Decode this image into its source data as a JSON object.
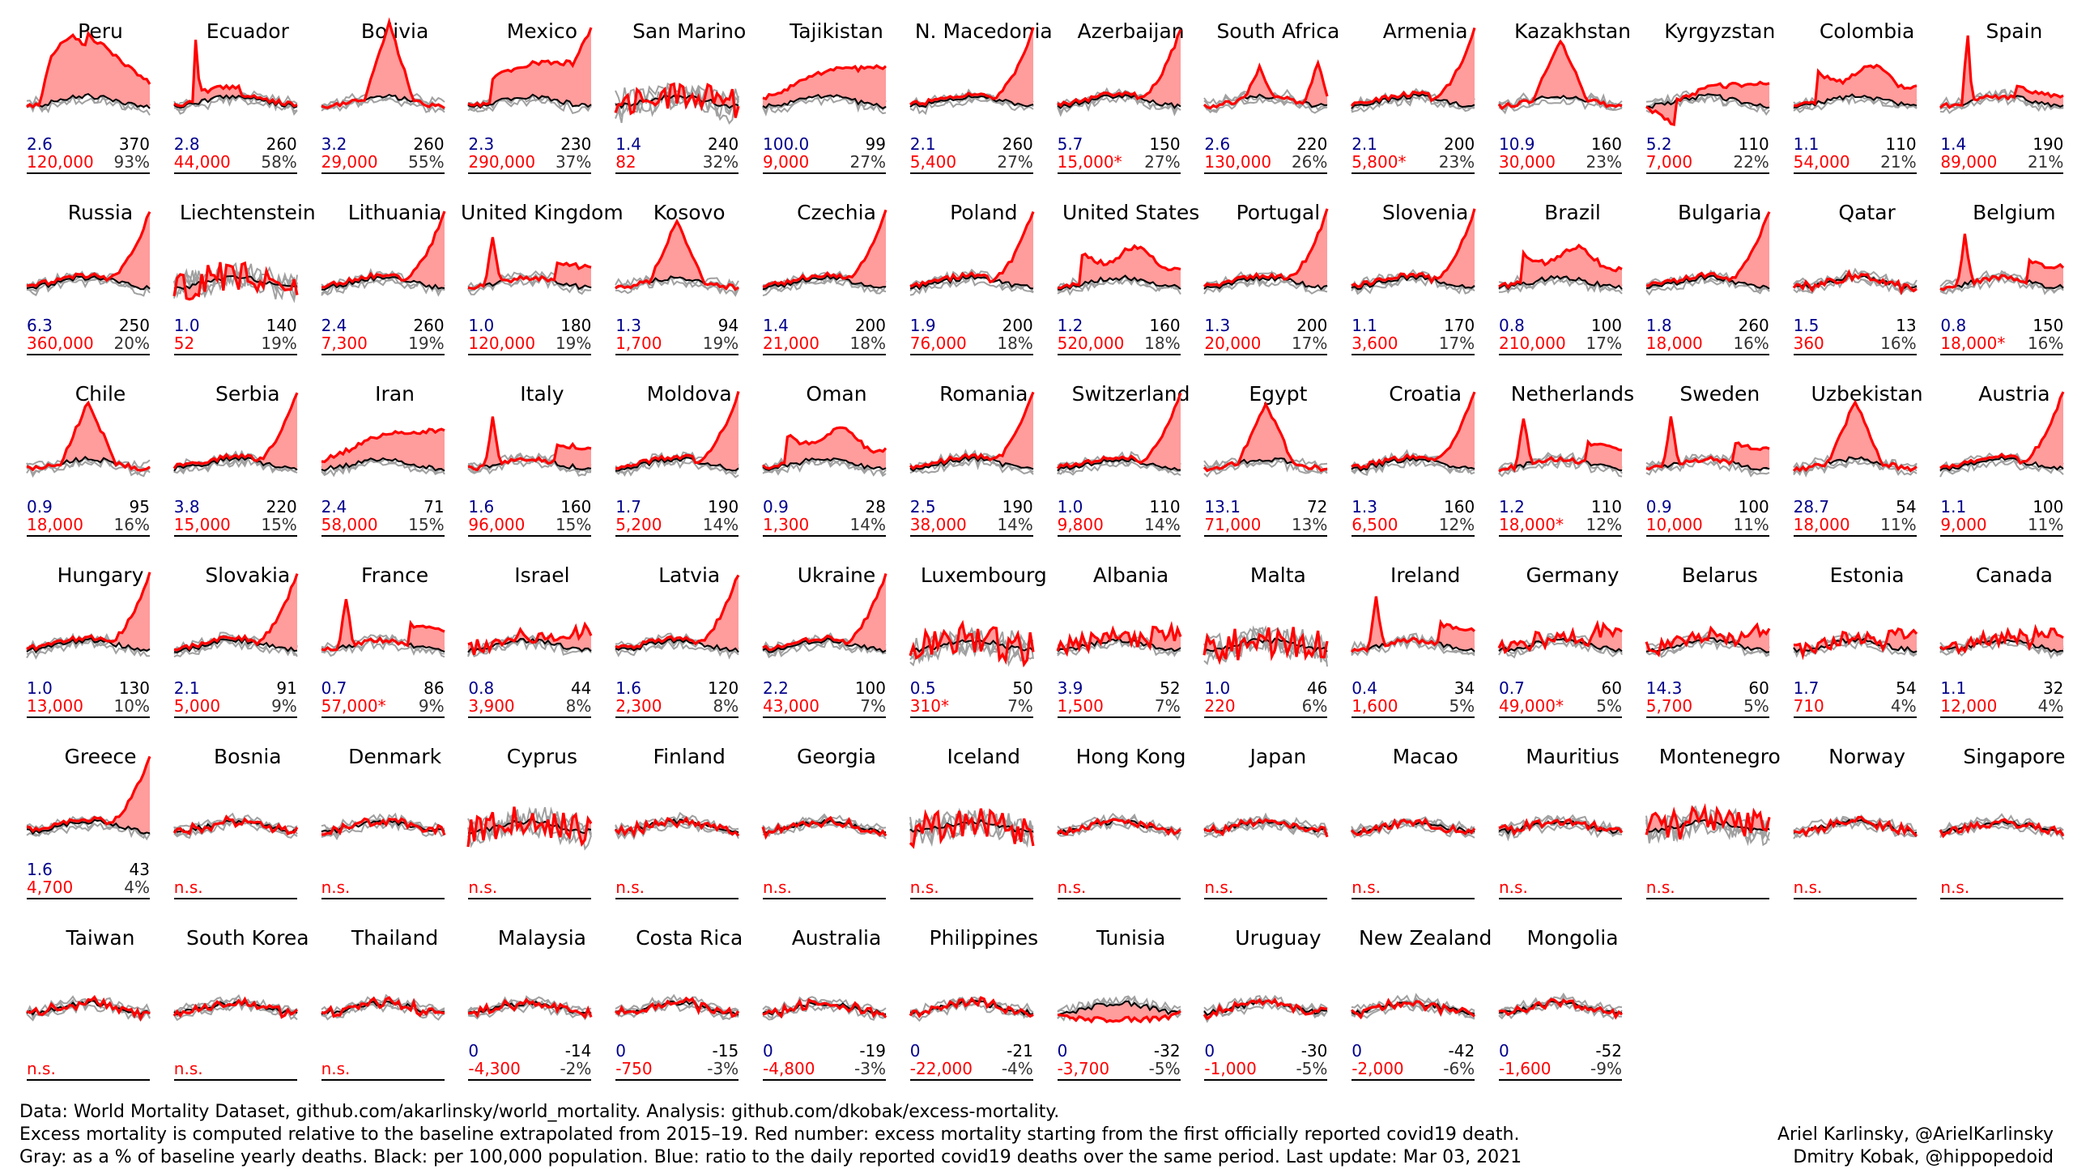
{
  "colors": {
    "excess": "#ff0000",
    "fill": "#ff9c9c",
    "baseline": "#000000",
    "past": "#a0a0a0",
    "early": "#b400c8"
  },
  "chart_data": {
    "type": "line",
    "panels": [
      {
        "name": "Peru",
        "blue": "2.6",
        "black": "370",
        "red": "120,000",
        "gray": "93%",
        "shape": "peru"
      },
      {
        "name": "Ecuador",
        "blue": "2.8",
        "black": "260",
        "red": "44,000",
        "gray": "58%",
        "shape": "ecuador"
      },
      {
        "name": "Bolivia",
        "blue": "3.2",
        "black": "260",
        "red": "29,000",
        "gray": "55%",
        "shape": "bolivia"
      },
      {
        "name": "Mexico",
        "blue": "2.3",
        "black": "230",
        "red": "290,000",
        "gray": "37%",
        "shape": "mexico"
      },
      {
        "name": "San Marino",
        "blue": "1.4",
        "black": "240",
        "red": "82",
        "gray": "32%",
        "shape": "noisy"
      },
      {
        "name": "Tajikistan",
        "blue": "100.0",
        "black": "99",
        "red": "9,000",
        "gray": "27%",
        "shape": "tajik"
      },
      {
        "name": "N. Macedonia",
        "blue": "2.1",
        "black": "260",
        "red": "5,400",
        "gray": "27%",
        "shape": "late"
      },
      {
        "name": "Azerbaijan",
        "blue": "5.7",
        "black": "150",
        "red": "15,000*",
        "gray": "27%",
        "shape": "late"
      },
      {
        "name": "South Africa",
        "blue": "2.6",
        "black": "220",
        "red": "130,000",
        "gray": "26%",
        "shape": "twin"
      },
      {
        "name": "Armenia",
        "blue": "2.1",
        "black": "200",
        "red": "5,800*",
        "gray": "23%",
        "shape": "late"
      },
      {
        "name": "Kazakhstan",
        "blue": "10.9",
        "black": "160",
        "red": "30,000",
        "gray": "23%",
        "shape": "mid"
      },
      {
        "name": "Kyrgyzstan",
        "blue": "5.2",
        "black": "110",
        "red": "7,000",
        "gray": "22%",
        "shape": "kyrgyz"
      },
      {
        "name": "Colombia",
        "blue": "1.1",
        "black": "110",
        "red": "54,000",
        "gray": "21%",
        "shape": "plateau"
      },
      {
        "name": "Spain",
        "blue": "1.4",
        "black": "190",
        "red": "89,000",
        "gray": "21%",
        "shape": "spain"
      },
      {
        "name": "Russia",
        "blue": "6.3",
        "black": "250",
        "red": "360,000",
        "gray": "20%",
        "shape": "late"
      },
      {
        "name": "Liechtenstein",
        "blue": "1.0",
        "black": "140",
        "red": "52",
        "gray": "19%",
        "shape": "noisy"
      },
      {
        "name": "Lithuania",
        "blue": "2.4",
        "black": "260",
        "red": "7,300",
        "gray": "19%",
        "shape": "late"
      },
      {
        "name": "United Kingdom",
        "blue": "1.0",
        "black": "180",
        "red": "120,000",
        "gray": "19%",
        "shape": "spring"
      },
      {
        "name": "Kosovo",
        "blue": "1.3",
        "black": "94",
        "red": "1,700",
        "gray": "19%",
        "shape": "mid"
      },
      {
        "name": "Czechia",
        "blue": "1.4",
        "black": "200",
        "red": "21,000",
        "gray": "18%",
        "shape": "late"
      },
      {
        "name": "Poland",
        "blue": "1.9",
        "black": "200",
        "red": "76,000",
        "gray": "18%",
        "shape": "late"
      },
      {
        "name": "United States",
        "blue": "1.2",
        "black": "160",
        "red": "520,000",
        "gray": "18%",
        "shape": "plateau"
      },
      {
        "name": "Portugal",
        "blue": "1.3",
        "black": "200",
        "red": "20,000",
        "gray": "17%",
        "shape": "late"
      },
      {
        "name": "Slovenia",
        "blue": "1.1",
        "black": "170",
        "red": "3,600",
        "gray": "17%",
        "shape": "late"
      },
      {
        "name": "Brazil",
        "blue": "0.8",
        "black": "100",
        "red": "210,000",
        "gray": "17%",
        "shape": "plateau"
      },
      {
        "name": "Bulgaria",
        "blue": "1.8",
        "black": "260",
        "red": "18,000",
        "gray": "16%",
        "shape": "late"
      },
      {
        "name": "Qatar",
        "blue": "1.5",
        "black": "13",
        "red": "360",
        "gray": "16%",
        "shape": "flat"
      },
      {
        "name": "Belgium",
        "blue": "0.8",
        "black": "150",
        "red": "18,000*",
        "gray": "16%",
        "shape": "spring"
      },
      {
        "name": "Chile",
        "blue": "0.9",
        "black": "95",
        "red": "18,000",
        "gray": "16%",
        "shape": "mid"
      },
      {
        "name": "Serbia",
        "blue": "3.8",
        "black": "220",
        "red": "15,000",
        "gray": "15%",
        "shape": "late"
      },
      {
        "name": "Iran",
        "blue": "2.4",
        "black": "71",
        "red": "58,000",
        "gray": "15%",
        "shape": "tajik"
      },
      {
        "name": "Italy",
        "blue": "1.6",
        "black": "160",
        "red": "96,000",
        "gray": "15%",
        "shape": "spring"
      },
      {
        "name": "Moldova",
        "blue": "1.7",
        "black": "190",
        "red": "5,200",
        "gray": "14%",
        "shape": "late"
      },
      {
        "name": "Oman",
        "blue": "0.9",
        "black": "28",
        "red": "1,300",
        "gray": "14%",
        "shape": "plateau"
      },
      {
        "name": "Romania",
        "blue": "2.5",
        "black": "190",
        "red": "38,000",
        "gray": "14%",
        "shape": "late"
      },
      {
        "name": "Switzerland",
        "blue": "1.0",
        "black": "110",
        "red": "9,800",
        "gray": "14%",
        "shape": "late"
      },
      {
        "name": "Egypt",
        "blue": "13.1",
        "black": "72",
        "red": "71,000",
        "gray": "13%",
        "shape": "mid"
      },
      {
        "name": "Croatia",
        "blue": "1.3",
        "black": "160",
        "red": "6,500",
        "gray": "12%",
        "shape": "late"
      },
      {
        "name": "Netherlands",
        "blue": "1.2",
        "black": "110",
        "red": "18,000*",
        "gray": "12%",
        "shape": "spring"
      },
      {
        "name": "Sweden",
        "blue": "0.9",
        "black": "100",
        "red": "10,000",
        "gray": "11%",
        "shape": "spring"
      },
      {
        "name": "Uzbekistan",
        "blue": "28.7",
        "black": "54",
        "red": "18,000",
        "gray": "11%",
        "shape": "mid"
      },
      {
        "name": "Austria",
        "blue": "1.1",
        "black": "100",
        "red": "9,000",
        "gray": "11%",
        "shape": "late"
      },
      {
        "name": "Hungary",
        "blue": "1.0",
        "black": "130",
        "red": "13,000",
        "gray": "10%",
        "shape": "late"
      },
      {
        "name": "Slovakia",
        "blue": "2.1",
        "black": "91",
        "red": "5,000",
        "gray": "9%",
        "shape": "late"
      },
      {
        "name": "France",
        "blue": "0.7",
        "black": "86",
        "red": "57,000*",
        "gray": "9%",
        "shape": "spring"
      },
      {
        "name": "Israel",
        "blue": "0.8",
        "black": "44",
        "red": "3,900",
        "gray": "8%",
        "shape": "small"
      },
      {
        "name": "Latvia",
        "blue": "1.6",
        "black": "120",
        "red": "2,300",
        "gray": "8%",
        "shape": "late"
      },
      {
        "name": "Ukraine",
        "blue": "2.2",
        "black": "100",
        "red": "43,000",
        "gray": "7%",
        "shape": "late"
      },
      {
        "name": "Luxembourg",
        "blue": "0.5",
        "black": "50",
        "red": "310*",
        "gray": "7%",
        "shape": "noisy"
      },
      {
        "name": "Albania",
        "blue": "3.9",
        "black": "52",
        "red": "1,500",
        "gray": "7%",
        "shape": "small"
      },
      {
        "name": "Malta",
        "blue": "1.0",
        "black": "46",
        "red": "220",
        "gray": "6%",
        "shape": "noisy"
      },
      {
        "name": "Ireland",
        "blue": "0.4",
        "black": "34",
        "red": "1,600",
        "gray": "5%",
        "shape": "spring"
      },
      {
        "name": "Germany",
        "blue": "0.7",
        "black": "60",
        "red": "49,000*",
        "gray": "5%",
        "shape": "small"
      },
      {
        "name": "Belarus",
        "blue": "14.3",
        "black": "60",
        "red": "5,700",
        "gray": "5%",
        "shape": "small"
      },
      {
        "name": "Estonia",
        "blue": "1.7",
        "black": "54",
        "red": "710",
        "gray": "4%",
        "shape": "small"
      },
      {
        "name": "Canada",
        "blue": "1.1",
        "black": "32",
        "red": "12,000",
        "gray": "4%",
        "shape": "small"
      },
      {
        "name": "Greece",
        "blue": "1.6",
        "black": "43",
        "red": "4,700",
        "gray": "4%",
        "shape": "late"
      },
      {
        "name": "Bosnia",
        "blue": "",
        "black": "",
        "red": "n.s.",
        "gray": "",
        "shape": "flat"
      },
      {
        "name": "Denmark",
        "blue": "",
        "black": "",
        "red": "n.s.",
        "gray": "",
        "shape": "flat"
      },
      {
        "name": "Cyprus",
        "blue": "",
        "black": "",
        "red": "n.s.",
        "gray": "",
        "shape": "noisy"
      },
      {
        "name": "Finland",
        "blue": "",
        "black": "",
        "red": "n.s.",
        "gray": "",
        "shape": "flat"
      },
      {
        "name": "Georgia",
        "blue": "",
        "black": "",
        "red": "n.s.",
        "gray": "",
        "shape": "flat"
      },
      {
        "name": "Iceland",
        "blue": "",
        "black": "",
        "red": "n.s.",
        "gray": "",
        "shape": "noisy"
      },
      {
        "name": "Hong Kong",
        "blue": "",
        "black": "",
        "red": "n.s.",
        "gray": "",
        "shape": "flat"
      },
      {
        "name": "Japan",
        "blue": "",
        "black": "",
        "red": "n.s.",
        "gray": "",
        "shape": "flat"
      },
      {
        "name": "Macao",
        "blue": "",
        "black": "",
        "red": "n.s.",
        "gray": "",
        "shape": "flat"
      },
      {
        "name": "Mauritius",
        "blue": "",
        "black": "",
        "red": "n.s.",
        "gray": "",
        "shape": "flat"
      },
      {
        "name": "Montenegro",
        "blue": "",
        "black": "",
        "red": "n.s.",
        "gray": "",
        "shape": "noisy"
      },
      {
        "name": "Norway",
        "blue": "",
        "black": "",
        "red": "n.s.",
        "gray": "",
        "shape": "flat"
      },
      {
        "name": "Singapore",
        "blue": "",
        "black": "",
        "red": "n.s.",
        "gray": "",
        "shape": "flat"
      },
      {
        "name": "Taiwan",
        "blue": "",
        "black": "",
        "red": "n.s.",
        "gray": "",
        "shape": "flat"
      },
      {
        "name": "South Korea",
        "blue": "",
        "black": "",
        "red": "n.s.",
        "gray": "",
        "shape": "flat"
      },
      {
        "name": "Thailand",
        "blue": "",
        "black": "",
        "red": "n.s.",
        "gray": "",
        "shape": "flat"
      },
      {
        "name": "Malaysia",
        "blue": "0",
        "black": "-14",
        "red": "-4,300",
        "gray": "-2%",
        "shape": "flat"
      },
      {
        "name": "Costa Rica",
        "blue": "0",
        "black": "-15",
        "red": "-750",
        "gray": "-3%",
        "shape": "flat"
      },
      {
        "name": "Australia",
        "blue": "0",
        "black": "-19",
        "red": "-4,800",
        "gray": "-3%",
        "shape": "flat"
      },
      {
        "name": "Philippines",
        "blue": "0",
        "black": "-21",
        "red": "-22,000",
        "gray": "-4%",
        "shape": "flat"
      },
      {
        "name": "Tunisia",
        "blue": "0",
        "black": "-32",
        "red": "-3,700",
        "gray": "-5%",
        "shape": "neg"
      },
      {
        "name": "Uruguay",
        "blue": "0",
        "black": "-30",
        "red": "-1,000",
        "gray": "-5%",
        "shape": "flat"
      },
      {
        "name": "New Zealand",
        "blue": "0",
        "black": "-42",
        "red": "-2,000",
        "gray": "-6%",
        "shape": "flat"
      },
      {
        "name": "Mongolia",
        "blue": "0",
        "black": "-52",
        "red": "-1,600",
        "gray": "-9%",
        "shape": "flat"
      }
    ]
  },
  "footer": {
    "line1": "Data: World Mortality Dataset, github.com/akarlinsky/world_mortality. Analysis: github.com/dkobak/excess-mortality.",
    "line2": "Excess mortality is computed relative to the baseline extrapolated from 2015–19. Red number: excess mortality starting from the first officially reported covid19 death.",
    "line3": "Gray: as a % of baseline yearly deaths. Black: per 100,000 population. Blue: ratio to the daily reported covid19 deaths over the same period. Last update: Mar 03, 2021",
    "author1": "Ariel Karlinsky, @ArielKarlinsky",
    "author2": "Dmitry Kobak, @hippopedoid"
  }
}
